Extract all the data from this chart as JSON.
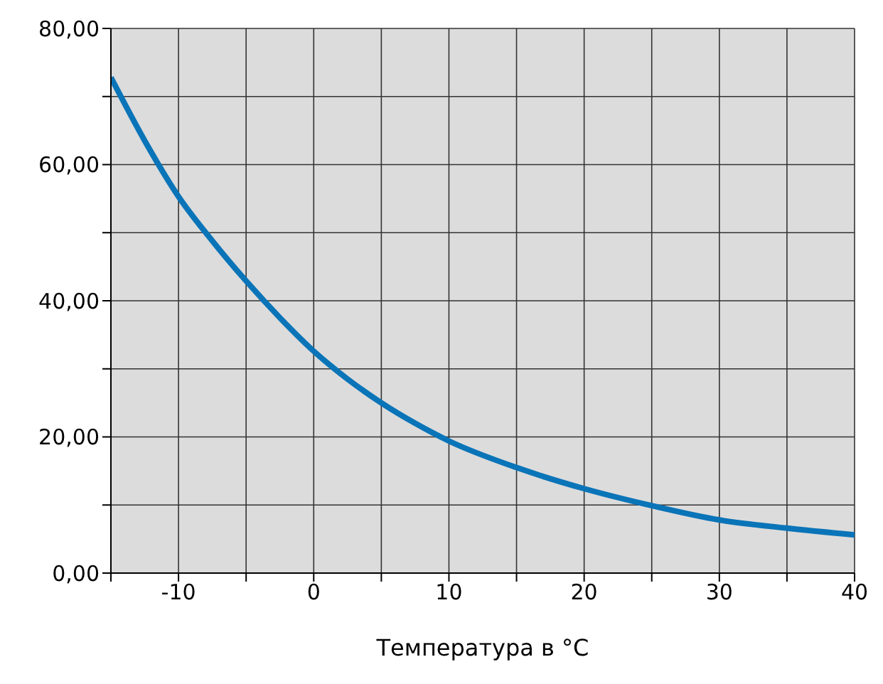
{
  "chart_data": {
    "type": "line",
    "xlabel": "Температура в °C",
    "x": [
      -15,
      -12.5,
      -10,
      -7.5,
      -5,
      -2.5,
      0,
      2.5,
      5,
      7.5,
      10,
      15,
      20,
      25,
      30,
      35,
      40
    ],
    "series": [
      {
        "color": "#0a74b8",
        "values": [
          72.8,
          63.5,
          55.3,
          48.8,
          42.9,
          37.5,
          32.6,
          28.5,
          25,
          22,
          19.4,
          15.5,
          12.4,
          9.9,
          7.8,
          6.6,
          5.6
        ]
      }
    ],
    "xlim": [
      -15,
      40
    ],
    "xticks": [
      {
        "value": -15,
        "label": null
      },
      -10,
      {
        "value": -5,
        "label": null
      },
      0,
      {
        "value": 5,
        "label": null
      },
      10,
      {
        "value": 15,
        "label": null
      },
      20,
      {
        "value": 25,
        "label": null
      },
      30,
      {
        "value": 35,
        "label": null
      },
      40
    ],
    "ylim": [
      0,
      80
    ],
    "yticks": [
      {
        "value": 0,
        "label": "0,00"
      },
      {
        "value": 10,
        "label": null
      },
      {
        "value": 20,
        "label": "20,00"
      },
      {
        "value": 30,
        "label": null
      },
      {
        "value": 40,
        "label": "40,00"
      },
      {
        "value": 50,
        "label": null
      },
      {
        "value": 60,
        "label": "60,00"
      },
      {
        "value": 70,
        "label": null
      },
      {
        "value": 80,
        "label": "80,00"
      }
    ],
    "grid": true,
    "marker": "none",
    "line_style": "solid"
  }
}
